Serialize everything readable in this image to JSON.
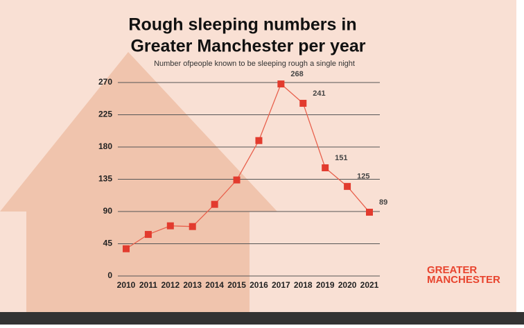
{
  "chart_data": {
    "type": "line",
    "title": [
      "Rough sleeping numbers in",
      "Greater Manchester per year"
    ],
    "subtitle": "Number ofpeople known to be sleeping rough a single night",
    "categories": [
      "2010",
      "2011",
      "2012",
      "2013",
      "2014",
      "2015",
      "2016",
      "2017",
      "2018",
      "2019",
      "2020",
      "2021"
    ],
    "values": [
      38,
      58,
      70,
      69,
      100,
      134,
      189,
      268,
      241,
      151,
      125,
      89
    ],
    "value_labels": [
      null,
      null,
      null,
      null,
      null,
      null,
      null,
      "268",
      "241",
      "151",
      "125",
      "89"
    ],
    "color": "#e8604c",
    "marker_color": "#e23b2e",
    "ylim": [
      0,
      270
    ],
    "yticks": [
      0,
      45,
      90,
      135,
      180,
      225,
      270
    ],
    "grid": true,
    "logo": [
      "GREATER",
      "MANCHESTER"
    ]
  }
}
